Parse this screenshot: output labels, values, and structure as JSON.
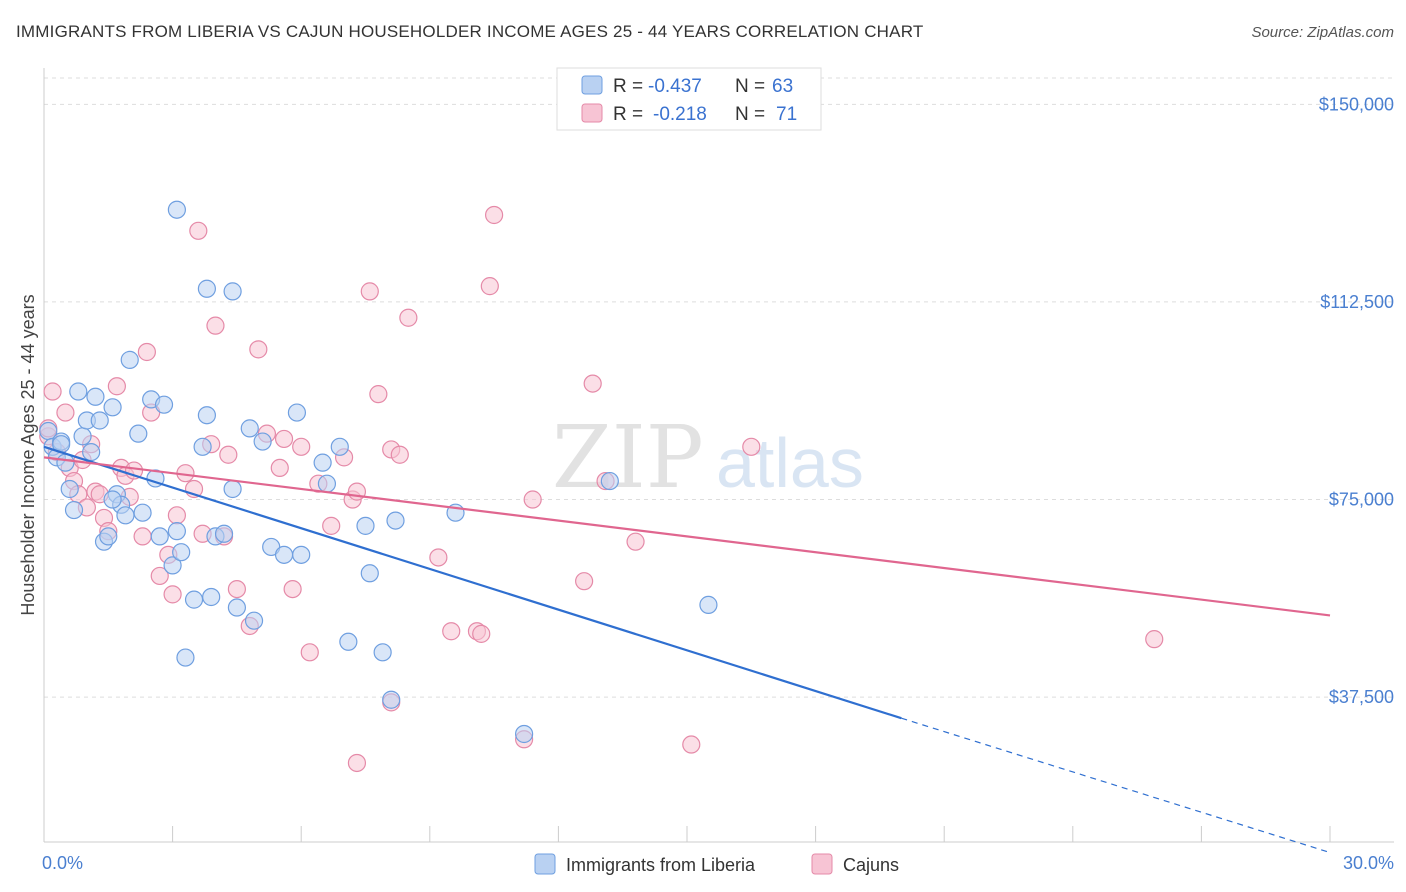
{
  "title": "IMMIGRANTS FROM LIBERIA VS CAJUN HOUSEHOLDER INCOME AGES 25 - 44 YEARS CORRELATION CHART",
  "source": "Source: ZipAtlas.com",
  "watermark": {
    "zip": "ZIP",
    "atlas": "atlas"
  },
  "colors": {
    "liberia_fill": "#b9d1f2",
    "liberia_stroke": "#6f9fe0",
    "liberia_line": "#2f6fd0",
    "cajun_fill": "#f7c4d4",
    "cajun_stroke": "#e58aa8",
    "cajun_line": "#e0668f",
    "tick": "#4a7fd0",
    "grid": "#dddddd"
  },
  "legend": {
    "rows": [
      {
        "r_label": "R =",
        "r_value": "-0.437",
        "n_label": "N =",
        "n_value": "63"
      },
      {
        "r_label": "R =",
        "r_value": "-0.218",
        "n_label": "N =",
        "n_value": "71"
      }
    ]
  },
  "chart_data": {
    "type": "scatter",
    "title": "IMMIGRANTS FROM LIBERIA VS CAJUN HOUSEHOLDER INCOME AGES 25 - 44 YEARS CORRELATION CHART",
    "xlabel": "",
    "ylabel": "Householder Income Ages 25 - 44 years",
    "xlim": [
      0,
      30
    ],
    "ylim": [
      10000,
      155000
    ],
    "x_tick_labels": [
      "0.0%",
      "30.0%"
    ],
    "y_ticks": [
      37500,
      75000,
      112500,
      150000
    ],
    "y_tick_labels": [
      "$37,500",
      "$75,000",
      "$112,500",
      "$150,000"
    ],
    "grid": "horizontal dashed",
    "legend_position": "top-center",
    "series": [
      {
        "name": "Immigrants from Liberia",
        "r": -0.437,
        "n": 63,
        "trend": {
          "x0": 0,
          "y0": 85000,
          "x1": 20,
          "y1": 33500,
          "dashed_to_x": 30,
          "dashed_to_y": 8000
        },
        "points": [
          [
            0.1,
            88000
          ],
          [
            0.2,
            85000
          ],
          [
            0.3,
            83000
          ],
          [
            0.4,
            86000
          ],
          [
            0.5,
            82000
          ],
          [
            0.6,
            77000
          ],
          [
            0.7,
            73000
          ],
          [
            0.8,
            95500
          ],
          [
            0.9,
            87000
          ],
          [
            1.0,
            90000
          ],
          [
            1.1,
            84000
          ],
          [
            1.2,
            94500
          ],
          [
            1.3,
            90000
          ],
          [
            1.4,
            67000
          ],
          [
            1.5,
            68000
          ],
          [
            1.6,
            92500
          ],
          [
            1.7,
            76000
          ],
          [
            1.8,
            74000
          ],
          [
            1.9,
            72000
          ],
          [
            2.0,
            101500
          ],
          [
            2.2,
            87500
          ],
          [
            2.5,
            94000
          ],
          [
            2.6,
            79000
          ],
          [
            2.7,
            68000
          ],
          [
            2.8,
            93000
          ],
          [
            3.0,
            62500
          ],
          [
            3.1,
            69000
          ],
          [
            3.2,
            65000
          ],
          [
            3.3,
            45000
          ],
          [
            3.5,
            56000
          ],
          [
            3.7,
            85000
          ],
          [
            3.8,
            91000
          ],
          [
            3.9,
            56500
          ],
          [
            4.0,
            68000
          ],
          [
            4.2,
            68500
          ],
          [
            4.4,
            77000
          ],
          [
            4.5,
            54500
          ],
          [
            4.8,
            88500
          ],
          [
            4.9,
            52000
          ],
          [
            5.1,
            86000
          ],
          [
            5.3,
            66000
          ],
          [
            5.6,
            64500
          ],
          [
            6.0,
            64500
          ],
          [
            6.5,
            82000
          ],
          [
            6.6,
            78000
          ],
          [
            6.9,
            85000
          ],
          [
            7.1,
            48000
          ],
          [
            7.5,
            70000
          ],
          [
            7.6,
            61000
          ],
          [
            7.9,
            46000
          ],
          [
            8.1,
            37000
          ],
          [
            8.2,
            71000
          ],
          [
            3.8,
            115000
          ],
          [
            3.1,
            130000
          ],
          [
            4.4,
            114500
          ],
          [
            1.6,
            75000
          ],
          [
            0.4,
            85500
          ],
          [
            2.3,
            72500
          ],
          [
            5.9,
            91500
          ],
          [
            11.2,
            30500
          ],
          [
            13.2,
            78500
          ],
          [
            15.5,
            55000
          ],
          [
            9.6,
            72500
          ]
        ]
      },
      {
        "name": "Cajuns",
        "r": -0.218,
        "n": 71,
        "trend": {
          "x0": 0,
          "y0": 83000,
          "x1": 30,
          "y1": 53000
        },
        "points": [
          [
            0.1,
            87000
          ],
          [
            0.2,
            95500
          ],
          [
            0.3,
            84000
          ],
          [
            0.5,
            91500
          ],
          [
            0.6,
            81000
          ],
          [
            0.7,
            78500
          ],
          [
            0.8,
            76000
          ],
          [
            0.9,
            82500
          ],
          [
            1.0,
            73500
          ],
          [
            1.1,
            85500
          ],
          [
            1.2,
            76500
          ],
          [
            1.3,
            76000
          ],
          [
            1.4,
            71500
          ],
          [
            1.5,
            69000
          ],
          [
            1.7,
            96500
          ],
          [
            1.8,
            81000
          ],
          [
            1.9,
            79500
          ],
          [
            2.0,
            75500
          ],
          [
            2.1,
            80500
          ],
          [
            2.3,
            68000
          ],
          [
            2.4,
            103000
          ],
          [
            2.5,
            91500
          ],
          [
            2.7,
            60500
          ],
          [
            2.9,
            64500
          ],
          [
            3.0,
            57000
          ],
          [
            3.1,
            72000
          ],
          [
            3.3,
            80000
          ],
          [
            3.5,
            77000
          ],
          [
            3.6,
            126000
          ],
          [
            3.7,
            68500
          ],
          [
            3.9,
            85500
          ],
          [
            4.0,
            108000
          ],
          [
            4.2,
            68000
          ],
          [
            4.3,
            83500
          ],
          [
            4.5,
            58000
          ],
          [
            4.8,
            51000
          ],
          [
            5.0,
            103500
          ],
          [
            5.2,
            87500
          ],
          [
            5.5,
            81000
          ],
          [
            5.6,
            86500
          ],
          [
            5.8,
            58000
          ],
          [
            6.0,
            85000
          ],
          [
            6.2,
            46000
          ],
          [
            6.4,
            78000
          ],
          [
            6.7,
            70000
          ],
          [
            7.0,
            83000
          ],
          [
            7.2,
            75000
          ],
          [
            7.3,
            76500
          ],
          [
            7.6,
            114500
          ],
          [
            7.8,
            95000
          ],
          [
            8.1,
            84500
          ],
          [
            8.3,
            83500
          ],
          [
            8.5,
            109500
          ],
          [
            9.2,
            64000
          ],
          [
            9.5,
            50000
          ],
          [
            10.1,
            50000
          ],
          [
            10.4,
            115500
          ],
          [
            10.5,
            129000
          ],
          [
            11.2,
            29500
          ],
          [
            11.4,
            75000
          ],
          [
            12.6,
            59500
          ],
          [
            12.8,
            97000
          ],
          [
            13.1,
            78500
          ],
          [
            13.8,
            67000
          ],
          [
            15.1,
            28500
          ],
          [
            16.5,
            85000
          ],
          [
            25.9,
            48500
          ],
          [
            7.3,
            25000
          ],
          [
            8.1,
            36500
          ],
          [
            10.2,
            49500
          ],
          [
            0.1,
            88500
          ]
        ]
      }
    ]
  }
}
